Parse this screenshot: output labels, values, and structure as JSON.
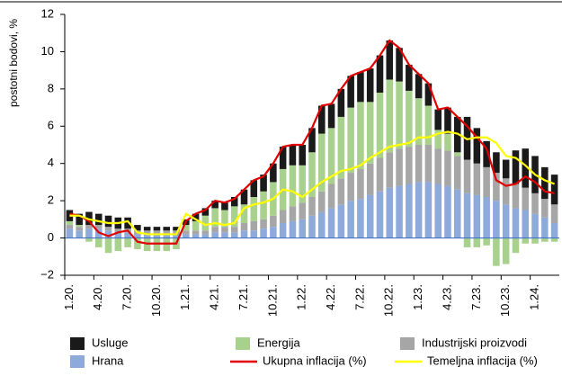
{
  "chart_data": {
    "type": "bar",
    "ylabel": "postotni bodovi, %",
    "categories": [
      "1.20.",
      null,
      null,
      "4.20.",
      null,
      null,
      "7.20.",
      null,
      null,
      "10.20.",
      null,
      null,
      "1.21.",
      null,
      null,
      "4.21.",
      null,
      null,
      "7.21.",
      null,
      null,
      "10.21.",
      null,
      null,
      "1.22.",
      null,
      null,
      "4.22.",
      null,
      null,
      "7.22.",
      null,
      null,
      "10.22.",
      null,
      null,
      "1.23.",
      null,
      null,
      "4.23.",
      null,
      null,
      "7.23.",
      null,
      null,
      "10.23.",
      null,
      null,
      "1.24.",
      null,
      null
    ],
    "ylim": [
      -2,
      12
    ],
    "yticks": [
      {
        "value": -2,
        "label": "−2"
      },
      0,
      2,
      4,
      6,
      8,
      10,
      12
    ],
    "series": [
      {
        "name": "Hrana",
        "color": "#8eaadb",
        "kind": "bar",
        "values": [
          0.5,
          0.4,
          0.5,
          0.5,
          0.4,
          0.3,
          0.3,
          0.2,
          0.2,
          0.2,
          0.2,
          0.2,
          0.2,
          0.2,
          0.2,
          0.3,
          0.3,
          0.3,
          0.4,
          0.4,
          0.5,
          0.6,
          0.8,
          0.9,
          1.0,
          1.2,
          1.4,
          1.6,
          1.8,
          2.0,
          2.1,
          2.3,
          2.5,
          2.7,
          2.8,
          2.9,
          3.0,
          3.0,
          2.9,
          2.8,
          2.6,
          2.4,
          2.3,
          2.2,
          2.0,
          1.8,
          1.6,
          1.5,
          1.3,
          1.1,
          0.8
        ]
      },
      {
        "name": "Industrijski proizvodi",
        "color": "#a6a6a6",
        "kind": "bar",
        "values": [
          0.2,
          0.2,
          0.2,
          0.2,
          0.2,
          0.2,
          0.2,
          0.2,
          0.2,
          0.2,
          0.2,
          0.2,
          0.2,
          0.2,
          0.2,
          0.3,
          0.3,
          0.3,
          0.4,
          0.5,
          0.5,
          0.6,
          0.7,
          0.8,
          0.9,
          1.0,
          1.1,
          1.3,
          1.4,
          1.5,
          1.6,
          1.7,
          1.8,
          1.9,
          2.0,
          2.0,
          2.0,
          2.0,
          1.9,
          1.9,
          1.8,
          1.8,
          1.7,
          1.6,
          1.5,
          1.4,
          1.3,
          1.2,
          1.1,
          1.0,
          1.0
        ]
      },
      {
        "name": "Energija",
        "color": "#a9d18e",
        "kind": "bar",
        "values": [
          0.2,
          0.1,
          -0.2,
          -0.5,
          -0.8,
          -0.7,
          -0.5,
          -0.6,
          -0.7,
          -0.7,
          -0.7,
          -0.6,
          0.3,
          0.5,
          0.8,
          1.0,
          0.9,
          1.1,
          1.0,
          1.3,
          1.5,
          1.8,
          2.2,
          2.2,
          2.0,
          2.4,
          3.1,
          3.0,
          3.3,
          3.5,
          3.6,
          3.3,
          3.5,
          3.9,
          3.6,
          3.0,
          2.5,
          2.1,
          1.0,
          0.9,
          0.2,
          -0.5,
          -0.5,
          -0.4,
          -1.5,
          -1.4,
          -0.8,
          -0.3,
          -0.3,
          -0.2,
          -0.2
        ]
      },
      {
        "name": "Usluge",
        "color": "#1a1a1a",
        "kind": "bar",
        "values": [
          0.6,
          0.6,
          0.7,
          0.6,
          0.6,
          0.6,
          0.6,
          0.3,
          0.2,
          0.2,
          0.2,
          0.2,
          0.3,
          0.4,
          0.4,
          0.4,
          0.4,
          0.5,
          0.8,
          0.9,
          0.9,
          1.0,
          1.2,
          1.1,
          1.1,
          1.3,
          1.5,
          1.3,
          1.5,
          1.7,
          1.6,
          1.8,
          2.0,
          2.1,
          1.8,
          1.4,
          1.3,
          1.2,
          1.1,
          1.4,
          1.9,
          2.3,
          1.9,
          1.4,
          1.1,
          1.0,
          1.8,
          2.1,
          2.0,
          1.7,
          1.6
        ]
      },
      {
        "name": "Ukupna inflacija (%)",
        "color": "#e00000",
        "kind": "line",
        "values": [
          1.3,
          1.2,
          0.9,
          0.3,
          0.1,
          0.3,
          0.4,
          -0.2,
          -0.3,
          -0.3,
          -0.3,
          -0.3,
          0.9,
          1.3,
          1.5,
          2.0,
          1.9,
          2.1,
          2.6,
          3.1,
          3.3,
          4.0,
          4.9,
          5.0,
          5.0,
          5.9,
          7.1,
          7.2,
          8.0,
          8.7,
          8.9,
          9.1,
          9.8,
          10.6,
          10.2,
          9.3,
          8.8,
          8.3,
          6.9,
          7.0,
          6.5,
          6.0,
          5.4,
          4.8,
          3.1,
          2.8,
          2.9,
          3.3,
          3.0,
          2.5,
          2.4
        ]
      },
      {
        "name": "Temeljna inflacija (%)",
        "color": "#ffff00",
        "kind": "line",
        "values": [
          1.2,
          1.2,
          1.0,
          0.9,
          0.8,
          0.8,
          0.9,
          0.3,
          0.2,
          0.2,
          0.2,
          0.2,
          1.3,
          1.0,
          0.7,
          0.8,
          0.7,
          0.8,
          1.6,
          1.8,
          1.9,
          2.1,
          2.6,
          2.5,
          2.2,
          2.6,
          3.0,
          3.3,
          3.6,
          3.7,
          3.9,
          4.3,
          4.6,
          4.9,
          5.0,
          5.1,
          5.4,
          5.4,
          5.6,
          5.7,
          5.6,
          5.3,
          5.4,
          5.4,
          5.1,
          4.4,
          4.3,
          3.9,
          3.4,
          3.1,
          2.9
        ]
      }
    ],
    "legend_order": [
      3,
      2,
      1,
      0,
      4,
      5
    ]
  }
}
